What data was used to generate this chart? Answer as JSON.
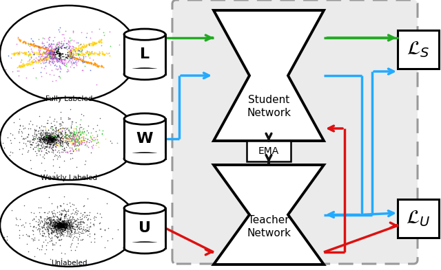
{
  "bg_color": "#ffffff",
  "gray_box_color": "#ebebeb",
  "gray_box_border": "#999999",
  "arrow_green": "#22aa22",
  "arrow_blue": "#22aaff",
  "arrow_red": "#dd1111",
  "arrow_black": "#111111",
  "label_L": "L",
  "label_W": "W",
  "label_U": "U",
  "label_fully": "Fully Labeled",
  "label_weakly": "Weakly Labeled",
  "label_unlabeled": "Unlabeled",
  "label_student": "Student\nNetwork",
  "label_teacher": "Teacher\nNetwork",
  "label_ema": "EMA",
  "label_Ls": "$\\mathcal{L}_S$",
  "label_Lu": "$\\mathcal{L}_U$",
  "fig_w": 6.4,
  "fig_h": 3.93,
  "dpi": 100
}
